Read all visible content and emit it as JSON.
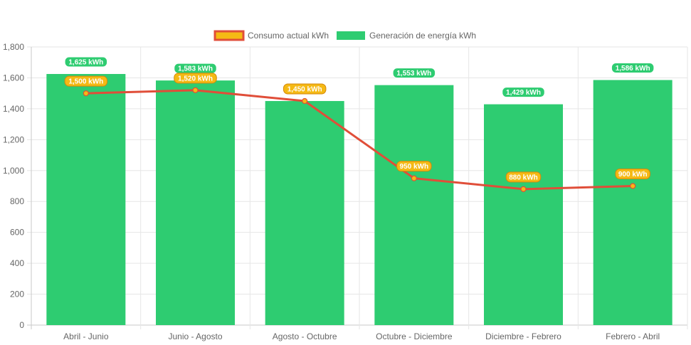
{
  "chart_data": {
    "type": "bar",
    "categories": [
      "Abril - Junio",
      "Junio - Agosto",
      "Agosto - Octubre",
      "Octubre - Diciembre",
      "Diciembre - Febrero",
      "Febrero - Abril"
    ],
    "series": [
      {
        "name": "Consumo actual kWh",
        "type": "line",
        "values": [
          1500,
          1520,
          1450,
          950,
          880,
          900
        ],
        "labels": [
          "1,500 kWh",
          "1,520 kWh",
          "1,450 kWh",
          "950 kWh",
          "880 kWh",
          "900 kWh"
        ],
        "color": "#e04e39",
        "point_color": "#f5b914"
      },
      {
        "name": "Generación de energía kWh",
        "type": "bar",
        "values": [
          1625,
          1583,
          1450,
          1553,
          1429,
          1586
        ],
        "labels": [
          "1,625 kWh",
          "1,583 kWh",
          "1,450 kWh",
          "1,553 kWh",
          "1,429 kWh",
          "1,586 kWh"
        ],
        "color": "#2ecc71"
      }
    ],
    "y_ticks": [
      "0",
      "200",
      "400",
      "600",
      "800",
      "1,000",
      "1,200",
      "1,400",
      "1,600",
      "1,800"
    ],
    "ylim": [
      0,
      1800
    ],
    "grid": true,
    "legend_position": "top"
  }
}
